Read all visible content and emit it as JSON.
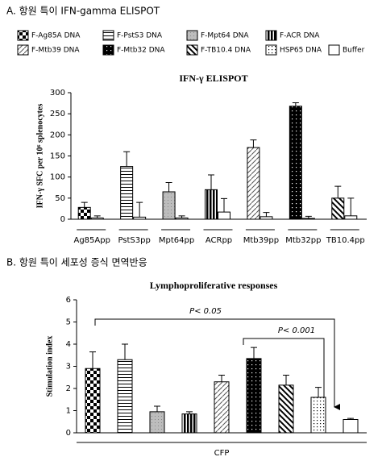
{
  "headings": [
    "A. 항원 특이 IFN-gamma ELISPOT",
    "B. 항원 특이 세포성 증식 면역반응"
  ],
  "legend": [
    {
      "name": "F-Ag85A DNA",
      "pattern": "checker"
    },
    {
      "name": "F-PstS3 DNA",
      "pattern": "hlines"
    },
    {
      "name": "F-Mpt64 DNA",
      "pattern": "gray"
    },
    {
      "name": "F-ACR DNA",
      "pattern": "vlines"
    },
    {
      "name": "F-Mtb39 DNA",
      "pattern": "diagup"
    },
    {
      "name": "F-Mtb32 DNA",
      "pattern": "blackdots"
    },
    {
      "name": "F-TB10.4 DNA",
      "pattern": "diagdown"
    },
    {
      "name": "HSP65 DNA",
      "pattern": "dots"
    },
    {
      "name": "Buffer",
      "pattern": "white"
    }
  ],
  "chart_data": [
    {
      "type": "bar",
      "title": "IFN-γ ELISPOT",
      "y_label": "IFN-γ SFC per 10⁶ splenocytes",
      "categories": [
        "Ag85App",
        "PstS3pp",
        "Mpt64pp",
        "ACRpp",
        "Mtb39pp",
        "Mtb32pp",
        "TB10.4pp"
      ],
      "series": [
        {
          "values": [
            28,
            125,
            65,
            70,
            170,
            268,
            50
          ],
          "errors": [
            12,
            35,
            22,
            35,
            18,
            8,
            28
          ],
          "patterns": [
            "checker",
            "hlines",
            "gray",
            "vlines",
            "diagup",
            "blackdots",
            "diagdown"
          ]
        },
        {
          "values": [
            3,
            5,
            3,
            17,
            6,
            2,
            8
          ],
          "errors": [
            5,
            35,
            5,
            32,
            10,
            5,
            42
          ],
          "pattern": "white"
        }
      ],
      "ylim": [
        0,
        300
      ],
      "yticks": [
        0,
        50,
        100,
        150,
        200,
        250,
        300
      ]
    },
    {
      "type": "bar",
      "title": "Lymphoproliferative responses",
      "y_label": "Stimulation index",
      "group_label": "CFP",
      "values": [
        2.9,
        3.3,
        0.95,
        0.85,
        2.3,
        3.35,
        2.15,
        1.6,
        0.6
      ],
      "errors": [
        0.75,
        0.7,
        0.25,
        0.1,
        0.3,
        0.5,
        0.45,
        0.45,
        0.05
      ],
      "patterns": [
        "checker",
        "hlines",
        "gray",
        "vlines",
        "diagup",
        "blackdots",
        "diagdown",
        "dots",
        "white"
      ],
      "annotations": [
        "P< 0.05",
        "P< 0.001"
      ],
      "ylim": [
        0,
        6
      ],
      "yticks": [
        0,
        1,
        2,
        3,
        4,
        5,
        6
      ]
    }
  ]
}
